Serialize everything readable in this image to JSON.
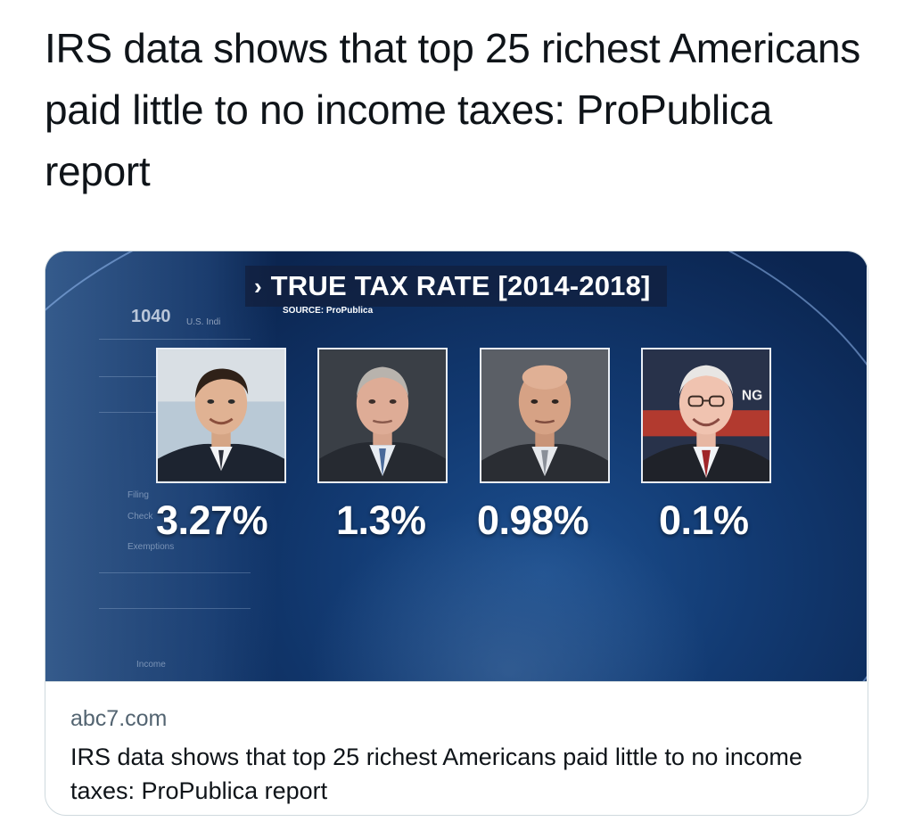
{
  "tweet": {
    "text": "IRS data shows that top 25 richest Americans paid little to no income taxes: ProPublica report"
  },
  "card": {
    "media": {
      "banner_title": "TRUE TAX RATE [2014-2018]",
      "banner_icon": "chevron-right-icon",
      "source": "SOURCE: ProPublica",
      "form_number": "1040",
      "form_subtitle": "U.S. Indi",
      "form_words": [
        "Filing",
        "Check",
        "Exemptions",
        "Income"
      ],
      "sign_text": "NG",
      "people": [
        {
          "rate": "3.27%"
        },
        {
          "rate": "1.3%"
        },
        {
          "rate": "0.98%"
        },
        {
          "rate": "0.1%"
        }
      ]
    },
    "domain": "abc7.com",
    "title": "IRS data shows that top 25 richest Americans paid little to no income taxes: ProPublica report"
  },
  "colors": {
    "text_primary": "#0f1419",
    "text_secondary": "#536471",
    "card_border": "#cfd9de",
    "media_blue": "#1c4f8f"
  }
}
